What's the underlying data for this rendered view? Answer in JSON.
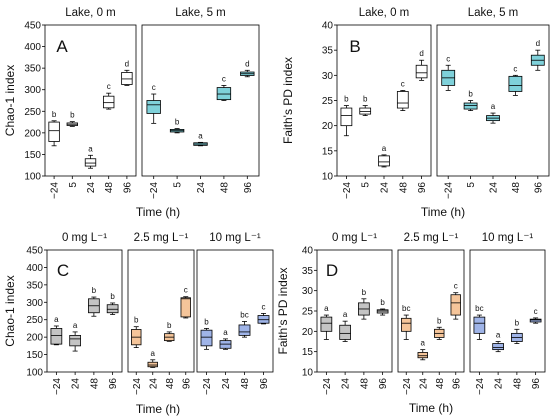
{
  "chart_data": [
    {
      "type": "box",
      "panel_letter": "A",
      "ylabel": "Chao-1 index",
      "xlabel": "Time (h)",
      "ylim": [
        100,
        450
      ],
      "yticks": [
        100,
        150,
        200,
        250,
        300,
        350,
        400,
        450
      ],
      "subplots": [
        {
          "title": "Lake, 0 m",
          "color": "#ffffff",
          "categories": [
            "−24",
            "5",
            "24",
            "48",
            "96"
          ],
          "boxes": [
            {
              "min": 170,
              "q1": 180,
              "median": 205,
              "q3": 225,
              "max": 228,
              "letter": "b"
            },
            {
              "min": 215,
              "q1": 217,
              "median": 220,
              "q3": 223,
              "max": 226,
              "letter": "b"
            },
            {
              "min": 118,
              "q1": 123,
              "median": 130,
              "q3": 140,
              "max": 148,
              "letter": "a"
            },
            {
              "min": 255,
              "q1": 258,
              "median": 270,
              "q3": 285,
              "max": 292,
              "letter": "c"
            },
            {
              "min": 310,
              "q1": 312,
              "median": 325,
              "q3": 340,
              "max": 345,
              "letter": "d"
            }
          ]
        },
        {
          "title": "Lake, 5 m",
          "color": "#7fd1da",
          "categories": [
            "−24",
            "5",
            "24",
            "48",
            "96"
          ],
          "boxes": [
            {
              "min": 222,
              "q1": 245,
              "median": 265,
              "q3": 275,
              "max": 290,
              "letter": "c"
            },
            {
              "min": 200,
              "q1": 202,
              "median": 205,
              "q3": 208,
              "max": 210,
              "letter": "b"
            },
            {
              "min": 170,
              "q1": 171,
              "median": 174,
              "q3": 177,
              "max": 178,
              "letter": "a"
            },
            {
              "min": 275,
              "q1": 277,
              "median": 290,
              "q3": 305,
              "max": 310,
              "letter": "c"
            },
            {
              "min": 330,
              "q1": 333,
              "median": 337,
              "q3": 341,
              "max": 345,
              "letter": "d"
            }
          ]
        }
      ]
    },
    {
      "type": "box",
      "panel_letter": "B",
      "ylabel": "Faith's PD index",
      "xlabel": "Time (h)",
      "ylim": [
        10,
        40
      ],
      "yticks": [
        10,
        15,
        20,
        25,
        30,
        35,
        40
      ],
      "subplots": [
        {
          "title": "Lake, 0 m",
          "color": "#ffffff",
          "categories": [
            "−24",
            "5",
            "24",
            "48",
            "96"
          ],
          "boxes": [
            {
              "min": 18,
              "q1": 20,
              "median": 22,
              "q3": 23.5,
              "max": 24,
              "letter": "b"
            },
            {
              "min": 22,
              "q1": 22.3,
              "median": 22.8,
              "q3": 23.5,
              "max": 24,
              "letter": "b"
            },
            {
              "min": 11.8,
              "q1": 12,
              "median": 12.8,
              "q3": 14,
              "max": 14.2,
              "letter": "a"
            },
            {
              "min": 23,
              "q1": 23.5,
              "median": 24.5,
              "q3": 26.8,
              "max": 27,
              "letter": "c"
            },
            {
              "min": 29,
              "q1": 29.5,
              "median": 30.5,
              "q3": 32,
              "max": 33,
              "letter": "d"
            }
          ]
        },
        {
          "title": "Lake, 5 m",
          "color": "#7fd1da",
          "categories": [
            "−24",
            "5",
            "24",
            "48",
            "96"
          ],
          "boxes": [
            {
              "min": 27,
              "q1": 28,
              "median": 29.5,
              "q3": 31,
              "max": 32,
              "letter": "c"
            },
            {
              "min": 23,
              "q1": 23.3,
              "median": 24,
              "q3": 24.5,
              "max": 25,
              "letter": "b"
            },
            {
              "min": 20.5,
              "q1": 21,
              "median": 21.5,
              "q3": 22,
              "max": 22.5,
              "letter": "a"
            },
            {
              "min": 26,
              "q1": 26.8,
              "median": 28,
              "q3": 29.8,
              "max": 30,
              "letter": "c"
            },
            {
              "min": 31,
              "q1": 32,
              "median": 33,
              "q3": 34,
              "max": 35,
              "letter": "d"
            }
          ]
        }
      ]
    },
    {
      "type": "box",
      "panel_letter": "C",
      "ylabel": "Chao-1 index",
      "xlabel": "Time (h)",
      "ylim": [
        100,
        450
      ],
      "yticks": [
        100,
        150,
        200,
        250,
        300,
        350,
        400,
        450
      ],
      "subplots": [
        {
          "title": "0 mg L⁻¹",
          "color": "#c4c4c4",
          "categories": [
            "−24",
            "24",
            "48",
            "96"
          ],
          "boxes": [
            {
              "min": 178,
              "q1": 180,
              "median": 205,
              "q3": 225,
              "max": 232,
              "letter": "a"
            },
            {
              "min": 160,
              "q1": 175,
              "median": 195,
              "q3": 205,
              "max": 215,
              "letter": "a"
            },
            {
              "min": 260,
              "q1": 270,
              "median": 290,
              "q3": 310,
              "max": 315,
              "letter": "b"
            },
            {
              "min": 265,
              "q1": 270,
              "median": 280,
              "q3": 293,
              "max": 298,
              "letter": "b"
            }
          ]
        },
        {
          "title": "2.5 mg L⁻¹",
          "color": "#f5c59a",
          "categories": [
            "−24",
            "24",
            "48",
            "96"
          ],
          "boxes": [
            {
              "min": 170,
              "q1": 178,
              "median": 200,
              "q3": 222,
              "max": 230,
              "letter": "b"
            },
            {
              "min": 113,
              "q1": 115,
              "median": 120,
              "q3": 128,
              "max": 135,
              "letter": "a"
            },
            {
              "min": 188,
              "q1": 190,
              "median": 200,
              "q3": 210,
              "max": 215,
              "letter": "b"
            },
            {
              "min": 255,
              "q1": 258,
              "median": 310,
              "q3": 313,
              "max": 316,
              "letter": "c"
            }
          ]
        },
        {
          "title": "10 mg L⁻¹",
          "color": "#9fb4e8",
          "categories": [
            "−24",
            "24",
            "48",
            "96"
          ],
          "boxes": [
            {
              "min": 165,
              "q1": 175,
              "median": 200,
              "q3": 220,
              "max": 225,
              "letter": "b"
            },
            {
              "min": 165,
              "q1": 168,
              "median": 180,
              "q3": 190,
              "max": 195,
              "letter": "a"
            },
            {
              "min": 200,
              "q1": 205,
              "median": 215,
              "q3": 235,
              "max": 245,
              "letter": "bc"
            },
            {
              "min": 238,
              "q1": 240,
              "median": 250,
              "q3": 262,
              "max": 268,
              "letter": "c"
            }
          ]
        }
      ]
    },
    {
      "type": "box",
      "panel_letter": "D",
      "ylabel": "Faith's PD index",
      "xlabel": "Time (h)",
      "ylim": [
        10,
        40
      ],
      "yticks": [
        10,
        15,
        20,
        25,
        30,
        35,
        40
      ],
      "subplots": [
        {
          "title": "0 mg L⁻¹",
          "color": "#c4c4c4",
          "categories": [
            "−24",
            "24",
            "48",
            "96"
          ],
          "boxes": [
            {
              "min": 18,
              "q1": 20,
              "median": 22,
              "q3": 23.5,
              "max": 24,
              "letter": "a"
            },
            {
              "min": 17.5,
              "q1": 18,
              "median": 19.5,
              "q3": 21.5,
              "max": 22.5,
              "letter": "a"
            },
            {
              "min": 23,
              "q1": 24,
              "median": 25.5,
              "q3": 27,
              "max": 28,
              "letter": "b"
            },
            {
              "min": 24,
              "q1": 24.5,
              "median": 25,
              "q3": 25.3,
              "max": 25.5,
              "letter": "b"
            }
          ]
        },
        {
          "title": "2.5 mg L⁻¹",
          "color": "#f5c59a",
          "categories": [
            "−24",
            "24",
            "48",
            "96"
          ],
          "boxes": [
            {
              "min": 18,
              "q1": 20,
              "median": 22,
              "q3": 23.2,
              "max": 24,
              "letter": "bc"
            },
            {
              "min": 13,
              "q1": 13.5,
              "median": 14,
              "q3": 14.8,
              "max": 15.5,
              "letter": "a"
            },
            {
              "min": 18,
              "q1": 18.5,
              "median": 19.5,
              "q3": 20.5,
              "max": 21,
              "letter": "b"
            },
            {
              "min": 23,
              "q1": 24,
              "median": 27,
              "q3": 29,
              "max": 29.5,
              "letter": "c"
            }
          ]
        },
        {
          "title": "10 mg L⁻¹",
          "color": "#9fb4e8",
          "categories": [
            "−24",
            "24",
            "48",
            "96"
          ],
          "boxes": [
            {
              "min": 18,
              "q1": 19.5,
              "median": 22,
              "q3": 23.5,
              "max": 24,
              "letter": "bc"
            },
            {
              "min": 15,
              "q1": 15.5,
              "median": 16,
              "q3": 17,
              "max": 17.5,
              "letter": "a"
            },
            {
              "min": 17,
              "q1": 17.5,
              "median": 18.5,
              "q3": 19.5,
              "max": 20.5,
              "letter": "b"
            },
            {
              "min": 22,
              "q1": 22.3,
              "median": 22.8,
              "q3": 23,
              "max": 23.3,
              "letter": "c"
            }
          ]
        }
      ]
    }
  ]
}
